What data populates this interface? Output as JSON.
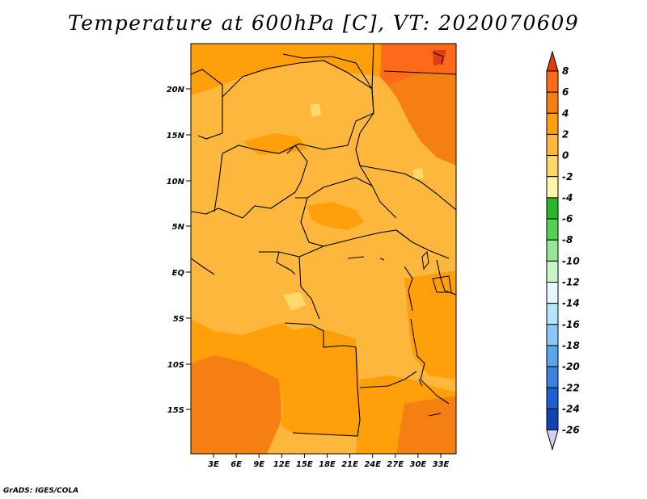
{
  "title": "Temperature at 600hPa [C], VT: 2020070609",
  "footer": "GrADS: IGES/COLA",
  "map": {
    "lat_ticks": [
      "20N",
      "15N",
      "10N",
      "5N",
      "EQ",
      "5S",
      "10S",
      "15S"
    ],
    "lon_ticks": [
      "3E",
      "6E",
      "9E",
      "12E",
      "15E",
      "18E",
      "21E",
      "24E",
      "27E",
      "30E",
      "33E"
    ]
  },
  "colorbar": {
    "levels": [
      "8",
      "6",
      "4",
      "2",
      "0",
      "-2",
      "-4",
      "-6",
      "-8",
      "-10",
      "-12",
      "-14",
      "-16",
      "-18",
      "-20",
      "-22",
      "-24",
      "-26"
    ],
    "colors": [
      "#e23d10",
      "#ff6a1a",
      "#f57f12",
      "#ffa00a",
      "#fcb73c",
      "#fdd86a",
      "#fff5a8",
      "#2ab52a",
      "#55d055",
      "#96e696",
      "#c8f5c8",
      "#e6f7fc",
      "#b4e6fa",
      "#8cc8f5",
      "#5aa5eb",
      "#3d82e1",
      "#1e5fd2",
      "#1043b4",
      "#0a2896",
      "#08106e",
      "#d0d0f8"
    ]
  },
  "legend_colors": {
    "0_to_2": "#fcb73c",
    "2_to_4": "#ffa00a",
    "4_to_6": "#f57f12",
    "6_to_8": "#ff6a1a"
  }
}
